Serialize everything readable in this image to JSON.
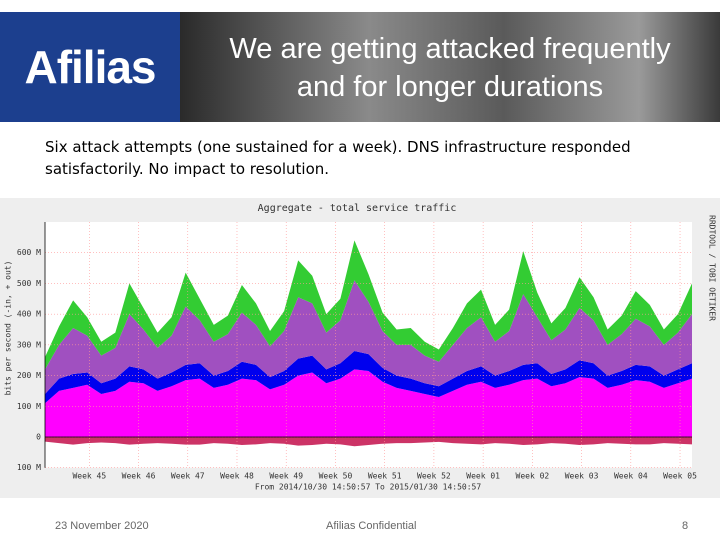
{
  "header": {
    "logo": "Afilias",
    "title": [
      "We are getting attacked frequently",
      "and for longer durations"
    ]
  },
  "body": {
    "text": "Six attack attempts (one sustained for a week). DNS infrastructure responded satisfactorily. No impact to resolution."
  },
  "chart_data": {
    "type": "stacked-area",
    "title": "Aggregate - total service traffic",
    "ylabel": "bits per second (-in, + out)",
    "footer": "From 2014/10/30 14:50:57 To 2015/01/30 14:50:57",
    "side_label": "RRDTOOL / TOBI OETIKER",
    "x": [
      0,
      2,
      4,
      6,
      8,
      10,
      12,
      14,
      16,
      18,
      20,
      22,
      24,
      26,
      28,
      30,
      32,
      34,
      36,
      38,
      40,
      42,
      44,
      46,
      48,
      50,
      52,
      54,
      56,
      58,
      60,
      62,
      64,
      66,
      68,
      70,
      72,
      74,
      76,
      78,
      80,
      82,
      84,
      86,
      88,
      90,
      92
    ],
    "xlim": [
      0,
      92
    ],
    "xticks": [
      {
        "value": 6.3,
        "label": "Week 45"
      },
      {
        "value": 13.3,
        "label": "Week 46"
      },
      {
        "value": 20.3,
        "label": "Week 47"
      },
      {
        "value": 27.3,
        "label": "Week 48"
      },
      {
        "value": 34.3,
        "label": "Week 49"
      },
      {
        "value": 41.3,
        "label": "Week 50"
      },
      {
        "value": 48.3,
        "label": "Week 51"
      },
      {
        "value": 55.3,
        "label": "Week 52"
      },
      {
        "value": 62.3,
        "label": "Week 01"
      },
      {
        "value": 69.3,
        "label": "Week 02"
      },
      {
        "value": 76.3,
        "label": "Week 03"
      },
      {
        "value": 83.3,
        "label": "Week 04"
      },
      {
        "value": 90.3,
        "label": "Week 05"
      }
    ],
    "ylim": [
      -100,
      700
    ],
    "yticks": [
      {
        "value": -100,
        "label": "100 M"
      },
      0,
      {
        "value": 100,
        "label": "100 M"
      },
      {
        "value": 200,
        "label": "200 M"
      },
      {
        "value": 300,
        "label": "300 M"
      },
      {
        "value": 400,
        "label": "400 M"
      },
      {
        "value": 500,
        "label": "500 M"
      },
      {
        "value": 600,
        "label": "600 M"
      }
    ],
    "grid": true,
    "series": [
      {
        "color": "#ff00ff",
        "values": [
          110,
          150,
          160,
          170,
          140,
          150,
          180,
          175,
          150,
          165,
          185,
          190,
          160,
          170,
          190,
          185,
          155,
          170,
          200,
          210,
          175,
          190,
          220,
          215,
          180,
          160,
          150,
          140,
          130,
          150,
          170,
          180,
          160,
          170,
          185,
          190,
          165,
          175,
          195,
          190,
          160,
          170,
          185,
          180,
          160,
          175,
          190
        ]
      },
      {
        "color": "#0000ee",
        "values": [
          30,
          40,
          45,
          40,
          35,
          40,
          50,
          45,
          40,
          45,
          50,
          50,
          40,
          45,
          55,
          50,
          40,
          45,
          55,
          55,
          45,
          50,
          60,
          55,
          45,
          40,
          40,
          35,
          35,
          40,
          45,
          50,
          40,
          45,
          50,
          50,
          40,
          45,
          55,
          50,
          40,
          45,
          50,
          50,
          40,
          45,
          50
        ]
      },
      {
        "color": "#a050c0",
        "values": [
          80,
          110,
          150,
          120,
          90,
          100,
          170,
          130,
          100,
          120,
          190,
          140,
          110,
          120,
          160,
          130,
          100,
          130,
          200,
          170,
          120,
          140,
          230,
          170,
          120,
          100,
          110,
          90,
          80,
          110,
          140,
          160,
          110,
          130,
          230,
          150,
          110,
          130,
          170,
          140,
          100,
          120,
          150,
          130,
          100,
          120,
          160
        ]
      },
      {
        "color": "#33cc33",
        "values": [
          40,
          60,
          90,
          60,
          45,
          50,
          100,
          70,
          50,
          60,
          110,
          70,
          55,
          60,
          90,
          70,
          50,
          65,
          120,
          90,
          60,
          70,
          130,
          90,
          60,
          50,
          55,
          45,
          40,
          55,
          80,
          90,
          55,
          70,
          140,
          80,
          55,
          70,
          100,
          75,
          50,
          60,
          90,
          70,
          50,
          60,
          100
        ]
      },
      {
        "color": "#cc3366",
        "values": [
          -15,
          -20,
          -25,
          -20,
          -18,
          -20,
          -25,
          -22,
          -20,
          -22,
          -25,
          -25,
          -20,
          -22,
          -26,
          -24,
          -20,
          -22,
          -28,
          -26,
          -22,
          -24,
          -30,
          -26,
          -22,
          -20,
          -20,
          -18,
          -16,
          -20,
          -22,
          -24,
          -20,
          -22,
          -26,
          -24,
          -20,
          -22,
          -26,
          -24,
          -20,
          -22,
          -24,
          -24,
          -20,
          -22,
          -24
        ]
      }
    ]
  },
  "footer": {
    "date": "23 November 2020",
    "center": "Afilias Confidential",
    "page": "8"
  }
}
